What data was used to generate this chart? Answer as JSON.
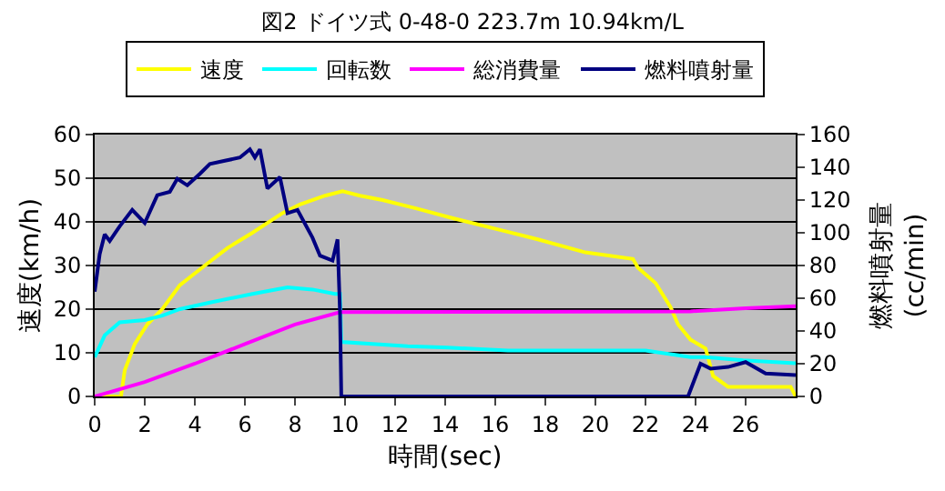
{
  "chart_data": {
    "type": "line",
    "title": "図2 ドイツ式 0-48-0 223.7m 10.94km/L",
    "xlabel": "時間(sec)",
    "ylabel": "速度(km/h)",
    "y2label": "燃料噴射量\n(cc/min)",
    "xlim": [
      0,
      28
    ],
    "xticks": [
      0,
      2,
      4,
      6,
      8,
      10,
      12,
      14,
      16,
      18,
      20,
      22,
      24,
      26
    ],
    "ylim": [
      0,
      60
    ],
    "yticks": [
      0,
      10,
      20,
      30,
      40,
      50,
      60
    ],
    "y2lim": [
      0,
      160
    ],
    "y2ticks": [
      0,
      20,
      40,
      60,
      80,
      100,
      120,
      140,
      160
    ],
    "grid": "y",
    "legend": "top",
    "marker": "none",
    "line_style": "solid",
    "series": [
      {
        "name": "速度",
        "color": "#ffff00",
        "x": [
          0,
          1.05,
          1.2,
          1.6,
          2.1,
          2.7,
          3.4,
          4.4,
          5.3,
          6.3,
          7.5,
          8.2,
          9.2,
          9.9,
          10.6,
          11.5,
          12.9,
          14.2,
          16.3,
          17.7,
          19.6,
          21.5,
          21.7,
          22.4,
          23.0,
          23.3,
          23.8,
          24.4,
          24.7,
          25.3,
          27.8,
          28
        ],
        "values": [
          0,
          0,
          6,
          12,
          16.5,
          20,
          25.5,
          30,
          34,
          37.5,
          42,
          44,
          46,
          47,
          46,
          45,
          43,
          41,
          38,
          36,
          33,
          31.5,
          29.5,
          26,
          20.5,
          16.5,
          13,
          11,
          4.7,
          2.2,
          2.2,
          0
        ]
      },
      {
        "name": "回転数",
        "color": "#00ffff",
        "x": [
          0,
          0.4,
          1,
          2,
          2.7,
          3.4,
          4.6,
          6.3,
          7.7,
          8.7,
          9.6,
          9.8,
          9.85,
          12.5,
          14.1,
          16.5,
          22,
          23.8,
          24.4,
          25.9,
          28
        ],
        "values": [
          9,
          14,
          17,
          17.5,
          18.5,
          20,
          21.5,
          23.5,
          25,
          24.5,
          23.5,
          23.5,
          12.5,
          11.5,
          11.2,
          10.5,
          10.5,
          9,
          9,
          8.3,
          7.6
        ]
      },
      {
        "name": "総消費量",
        "color": "#ff00ff",
        "x": [
          0,
          2,
          4,
          6,
          8,
          9.8,
          23.8,
          26,
          28
        ],
        "values": [
          0,
          3.3,
          7.5,
          12,
          16.5,
          19.3,
          19.5,
          20.2,
          20.7
        ]
      },
      {
        "name": "燃料噴射量",
        "color": "#000080",
        "axis": "y2",
        "x": [
          0,
          0.2,
          0.4,
          0.6,
          1,
          1.5,
          2,
          2.5,
          3,
          3.3,
          3.7,
          4.2,
          4.6,
          5.2,
          5.8,
          6.2,
          6.4,
          6.6,
          6.9,
          7.4,
          7.7,
          8.1,
          8.7,
          9.0,
          9.5,
          9.7,
          9.8,
          9.85,
          23.7,
          24.2,
          24.6,
          25.3,
          26.0,
          26.8,
          28
        ],
        "values": [
          64,
          87,
          99,
          95,
          104,
          114,
          106,
          123,
          125,
          133,
          129,
          136,
          142,
          144,
          146,
          151,
          146,
          151,
          127,
          134,
          112,
          114,
          97,
          86,
          83,
          96,
          51,
          0,
          0,
          20,
          17,
          18,
          21,
          14,
          13
        ]
      }
    ]
  }
}
